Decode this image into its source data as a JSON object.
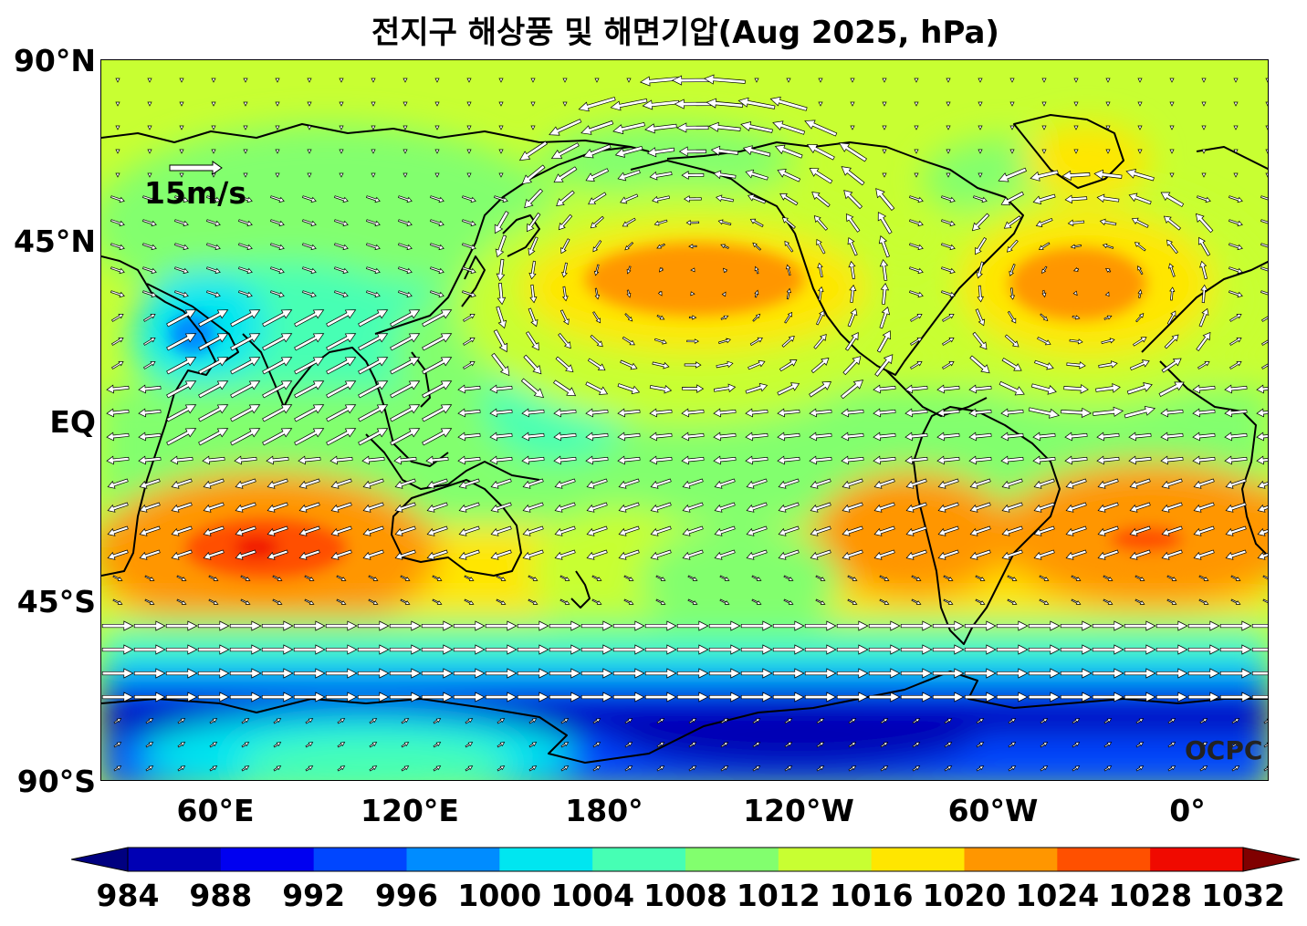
{
  "title": "전지구 해상풍 및 해면기압(Aug 2025, hPa)",
  "axes": {
    "lat_ticks": [
      "90°N",
      "45°N",
      "EQ",
      "45°S",
      "90°S"
    ],
    "lon_ticks": [
      "60°E",
      "120°E",
      "180°",
      "120°W",
      "60°W",
      "0°"
    ]
  },
  "legend": {
    "scale_arrow_label": "15m/s",
    "colorbar_ticks": [
      "984",
      "988",
      "992",
      "996",
      "1000",
      "1004",
      "1008",
      "1012",
      "1016",
      "1020",
      "1024",
      "1028",
      "1032"
    ],
    "colorbar_colors": [
      "#000080",
      "#0000b4",
      "#0000f0",
      "#0046ff",
      "#008cff",
      "#00e6f0",
      "#46ffb4",
      "#82ff6e",
      "#c8ff32",
      "#ffe600",
      "#ff9600",
      "#ff5000",
      "#f00a00",
      "#800000"
    ]
  },
  "credit": "OCPC"
}
